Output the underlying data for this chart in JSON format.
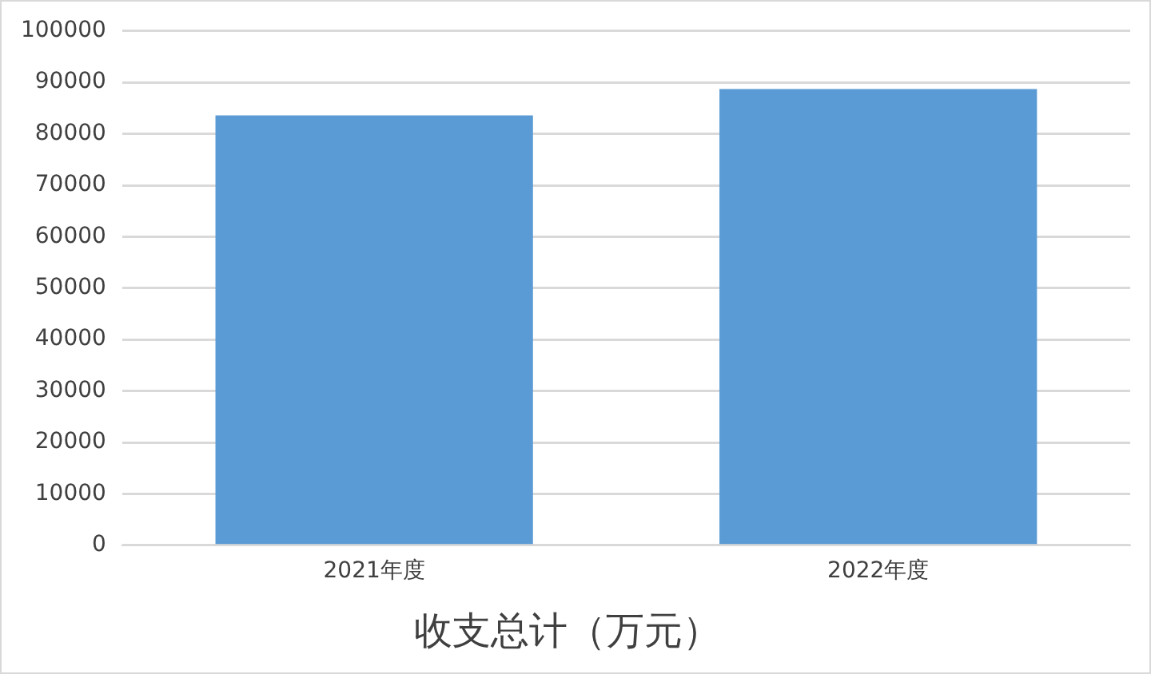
{
  "chart_data": {
    "type": "bar",
    "title": "收支总计（万元）",
    "categories": [
      "2021年度",
      "2022年度"
    ],
    "values": [
      83600,
      88700
    ],
    "color": "#5b9bd5",
    "ylim": [
      0,
      100000
    ],
    "yticks": [
      0,
      10000,
      20000,
      30000,
      40000,
      50000,
      60000,
      70000,
      80000,
      90000,
      100000
    ],
    "grid": "y"
  }
}
